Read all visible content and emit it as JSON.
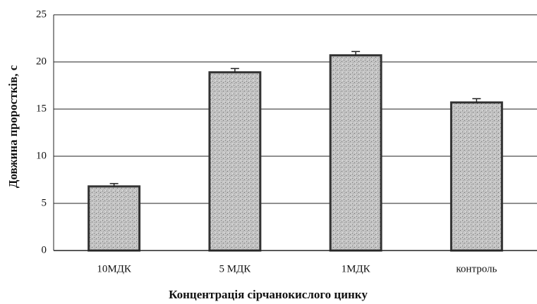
{
  "chart_data": {
    "type": "bar",
    "x_label": "Концентрація сірчанокислого цинку",
    "y_label": "Довжина проростків, с",
    "categories": [
      "10МДК",
      "5 МДК",
      "1МДК",
      "контроль"
    ],
    "values": [
      6.8,
      18.9,
      20.7,
      15.7
    ],
    "errors": [
      0.3,
      0.4,
      0.4,
      0.4
    ],
    "color": "#b8b8b8",
    "ylim": [
      0,
      25
    ],
    "yticks": [
      0,
      5,
      10,
      15,
      20,
      25
    ],
    "grid": true
  }
}
